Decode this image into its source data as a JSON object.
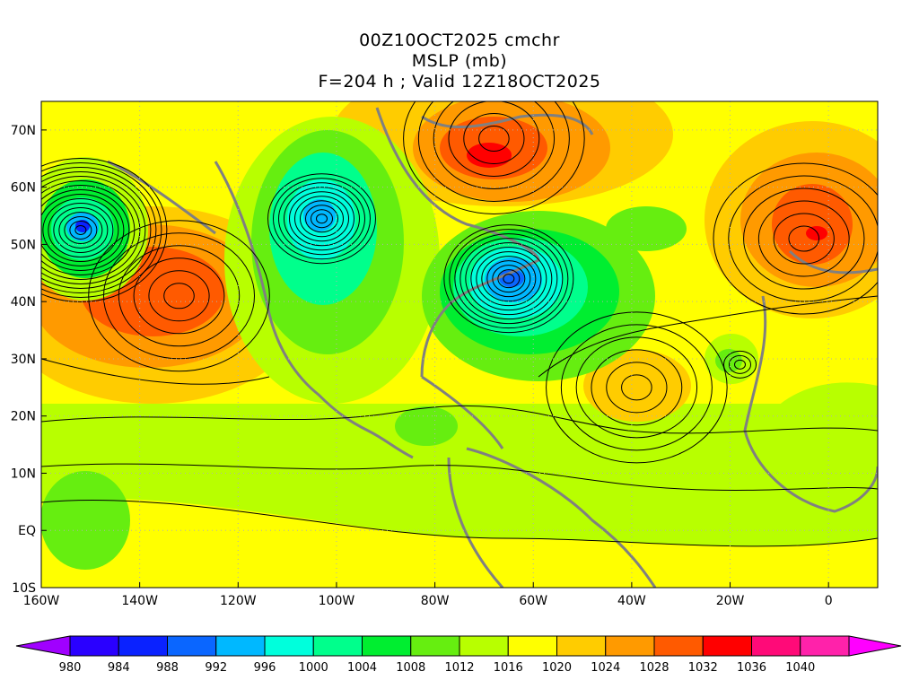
{
  "header": {
    "line1": "00Z10OCT2025 cmchr",
    "line2": "MSLP (mb)",
    "line3": "F=204 h ; Valid 12Z18OCT2025"
  },
  "map": {
    "lon_range": [
      -160,
      10
    ],
    "lat_range": [
      -10,
      75
    ],
    "lat_ticks": [
      {
        "lat": 70,
        "label": "70N"
      },
      {
        "lat": 60,
        "label": "60N"
      },
      {
        "lat": 50,
        "label": "50N"
      },
      {
        "lat": 40,
        "label": "40N"
      },
      {
        "lat": 30,
        "label": "30N"
      },
      {
        "lat": 20,
        "label": "20N"
      },
      {
        "lat": 10,
        "label": "10N"
      },
      {
        "lat": 0,
        "label": "EQ"
      },
      {
        "lat": -10,
        "label": "10S"
      }
    ],
    "lon_ticks": [
      {
        "lon": -160,
        "label": "160W"
      },
      {
        "lon": -140,
        "label": "140W"
      },
      {
        "lon": -120,
        "label": "120W"
      },
      {
        "lon": -100,
        "label": "100W"
      },
      {
        "lon": -80,
        "label": "80W"
      },
      {
        "lon": -60,
        "label": "60W"
      },
      {
        "lon": -40,
        "label": "40W"
      },
      {
        "lon": -20,
        "label": "20W"
      },
      {
        "lon": 0,
        "label": "0"
      }
    ],
    "pressure_systems": [
      {
        "kind": "low",
        "lon": -152,
        "lat": 52.5,
        "core_mb": 980
      },
      {
        "kind": "low",
        "lon": -103,
        "lat": 54.5,
        "core_mb": 992
      },
      {
        "kind": "low",
        "lon": -65,
        "lat": 44,
        "core_mb": 988
      },
      {
        "kind": "low",
        "lon": -18,
        "lat": 29,
        "core_mb": 1008
      },
      {
        "kind": "high",
        "lon": -132,
        "lat": 41,
        "core_mb": 1026
      },
      {
        "kind": "high",
        "lon": -68,
        "lat": 68.5,
        "core_mb": 1030
      },
      {
        "kind": "high",
        "lon": -5,
        "lat": 51,
        "core_mb": 1030
      },
      {
        "kind": "high",
        "lon": -39,
        "lat": 25,
        "core_mb": 1022
      }
    ]
  },
  "colorbar": {
    "labels": [
      "980",
      "984",
      "988",
      "992",
      "996",
      "1000",
      "1004",
      "1008",
      "1012",
      "1016",
      "1020",
      "1024",
      "1028",
      "1032",
      "1036",
      "1040"
    ],
    "colors": [
      "#a000ff",
      "#2a00ff",
      "#0a22ff",
      "#0a66ff",
      "#00b8ff",
      "#00ffdc",
      "#00ff8c",
      "#00ee30",
      "#66ee10",
      "#b8ff00",
      "#ffff00",
      "#ffcc00",
      "#ff9a00",
      "#ff5a00",
      "#ff0000",
      "#ff0a78",
      "#ff22aa",
      "#ff00ff"
    ]
  }
}
